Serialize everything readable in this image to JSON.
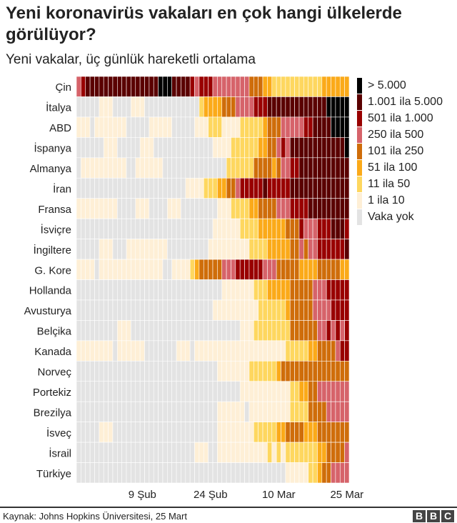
{
  "title": "Yeni koronavirüs vakaları en çok hangi ülkelerde görülüyor?",
  "subtitle": "Yeni vakalar, üç günlük hareketli ortalama",
  "source": "Kaynak: Johns Hopkins Üniversitesi, 25 Mart",
  "logo": [
    "B",
    "B",
    "C"
  ],
  "chart_data": {
    "type": "heatmap",
    "title": "Yeni koronavirüs vakaları en çok hangi ülkelerde görülüyor?",
    "subtitle": "Yeni vakalar, üç günlük hareketli ortalama",
    "x_days": 60,
    "x_ticks": [
      {
        "label": "9 Şub",
        "day": 14
      },
      {
        "label": "24 Şub",
        "day": 29
      },
      {
        "label": "10 Mar",
        "day": 44
      },
      {
        "label": "25 Mar",
        "day": 59
      }
    ],
    "legend": [
      {
        "level": 8,
        "label": "> 5.000",
        "color": "#000000"
      },
      {
        "level": 7,
        "label": "1.001 ila 5.000",
        "color": "#5a0000"
      },
      {
        "level": 6,
        "label": "501 ila 1.000",
        "color": "#990000"
      },
      {
        "level": 5,
        "label": "250 ila 500",
        "color": "#d6636a"
      },
      {
        "level": 4,
        "label": "101 ila 250",
        "color": "#cf6d0a"
      },
      {
        "level": 3,
        "label": "51 ila 100",
        "color": "#fbaa19"
      },
      {
        "level": 2,
        "label": "11 ila 50",
        "color": "#fed75f"
      },
      {
        "level": 1,
        "label": "1 ila 10",
        "color": "#feefd6"
      },
      {
        "level": 0,
        "label": "Vaka yok",
        "color": "#e3e3e3"
      }
    ],
    "rows": [
      {
        "country": "Çin",
        "runs": [
          [
            5,
            1
          ],
          [
            6,
            1
          ],
          [
            7,
            16
          ],
          [
            8,
            3
          ],
          [
            7,
            4
          ],
          [
            6,
            1
          ],
          [
            5,
            1
          ],
          [
            6,
            3
          ],
          [
            5,
            8
          ],
          [
            4,
            3
          ],
          [
            3,
            2
          ],
          [
            2,
            11
          ],
          [
            3,
            6
          ]
        ]
      },
      {
        "country": "İtalya",
        "runs": [
          [
            0,
            5
          ],
          [
            1,
            3
          ],
          [
            0,
            4
          ],
          [
            1,
            3
          ],
          [
            0,
            12
          ],
          [
            2,
            1
          ],
          [
            3,
            4
          ],
          [
            4,
            3
          ],
          [
            5,
            4
          ],
          [
            6,
            3
          ],
          [
            7,
            13
          ],
          [
            8,
            5
          ]
        ]
      },
      {
        "country": "ABD",
        "runs": [
          [
            1,
            3
          ],
          [
            0,
            1
          ],
          [
            1,
            7
          ],
          [
            0,
            5
          ],
          [
            1,
            5
          ],
          [
            0,
            5
          ],
          [
            1,
            3
          ],
          [
            2,
            3
          ],
          [
            1,
            4
          ],
          [
            2,
            5
          ],
          [
            3,
            1
          ],
          [
            4,
            3
          ],
          [
            5,
            5
          ],
          [
            6,
            2
          ],
          [
            7,
            4
          ],
          [
            8,
            4
          ]
        ]
      },
      {
        "country": "İspanya",
        "runs": [
          [
            0,
            6
          ],
          [
            1,
            3
          ],
          [
            0,
            5
          ],
          [
            1,
            3
          ],
          [
            0,
            13
          ],
          [
            1,
            4
          ],
          [
            2,
            6
          ],
          [
            3,
            2
          ],
          [
            4,
            2
          ],
          [
            5,
            1
          ],
          [
            6,
            1
          ],
          [
            5,
            1
          ],
          [
            7,
            12
          ],
          [
            8,
            1
          ]
        ]
      },
      {
        "country": "Almanya",
        "runs": [
          [
            0,
            1
          ],
          [
            1,
            10
          ],
          [
            0,
            2
          ],
          [
            1,
            6
          ],
          [
            0,
            14
          ],
          [
            2,
            6
          ],
          [
            4,
            4
          ],
          [
            3,
            1
          ],
          [
            4,
            1
          ],
          [
            5,
            2
          ],
          [
            6,
            2
          ],
          [
            7,
            11
          ]
        ]
      },
      {
        "country": "İran",
        "runs": [
          [
            0,
            24
          ],
          [
            1,
            4
          ],
          [
            2,
            3
          ],
          [
            3,
            2
          ],
          [
            4,
            2
          ],
          [
            5,
            1
          ],
          [
            6,
            5
          ],
          [
            7,
            1
          ],
          [
            6,
            5
          ],
          [
            7,
            13
          ]
        ]
      },
      {
        "country": "Fransa",
        "runs": [
          [
            1,
            9
          ],
          [
            0,
            4
          ],
          [
            1,
            3
          ],
          [
            0,
            4
          ],
          [
            1,
            3
          ],
          [
            0,
            8
          ],
          [
            1,
            3
          ],
          [
            2,
            4
          ],
          [
            3,
            2
          ],
          [
            4,
            4
          ],
          [
            5,
            3
          ],
          [
            6,
            4
          ],
          [
            7,
            9
          ]
        ]
      },
      {
        "country": "İsviçre",
        "runs": [
          [
            0,
            30
          ],
          [
            1,
            6
          ],
          [
            2,
            4
          ],
          [
            3,
            6
          ],
          [
            4,
            3
          ],
          [
            6,
            1
          ],
          [
            5,
            3
          ],
          [
            6,
            3
          ],
          [
            7,
            3
          ],
          [
            6,
            1
          ]
        ]
      },
      {
        "country": "İngiltere",
        "runs": [
          [
            0,
            5
          ],
          [
            1,
            3
          ],
          [
            0,
            3
          ],
          [
            1,
            9
          ],
          [
            0,
            9
          ],
          [
            1,
            9
          ],
          [
            2,
            4
          ],
          [
            3,
            5
          ],
          [
            4,
            2
          ],
          [
            5,
            1
          ],
          [
            4,
            1
          ],
          [
            5,
            2
          ],
          [
            6,
            6
          ],
          [
            7,
            1
          ]
        ]
      },
      {
        "country": "G. Kore",
        "runs": [
          [
            1,
            4
          ],
          [
            0,
            1
          ],
          [
            1,
            14
          ],
          [
            0,
            2
          ],
          [
            1,
            4
          ],
          [
            2,
            1
          ],
          [
            3,
            1
          ],
          [
            4,
            5
          ],
          [
            5,
            3
          ],
          [
            6,
            6
          ],
          [
            5,
            3
          ],
          [
            4,
            5
          ],
          [
            3,
            4
          ],
          [
            4,
            5
          ],
          [
            3,
            2
          ]
        ]
      },
      {
        "country": "Hollanda",
        "runs": [
          [
            0,
            32
          ],
          [
            1,
            7
          ],
          [
            2,
            3
          ],
          [
            3,
            5
          ],
          [
            4,
            5
          ],
          [
            5,
            3
          ],
          [
            6,
            5
          ]
        ]
      },
      {
        "country": "Avusturya",
        "runs": [
          [
            0,
            30
          ],
          [
            1,
            10
          ],
          [
            2,
            6
          ],
          [
            3,
            1
          ],
          [
            4,
            5
          ],
          [
            5,
            4
          ],
          [
            6,
            4
          ]
        ]
      },
      {
        "country": "Belçika",
        "runs": [
          [
            0,
            9
          ],
          [
            1,
            3
          ],
          [
            0,
            24
          ],
          [
            1,
            3
          ],
          [
            2,
            8
          ],
          [
            4,
            6
          ],
          [
            5,
            2
          ],
          [
            6,
            1
          ],
          [
            5,
            1
          ],
          [
            6,
            1
          ],
          [
            5,
            1
          ],
          [
            6,
            1
          ]
        ]
      },
      {
        "country": "Kanada",
        "runs": [
          [
            1,
            8
          ],
          [
            0,
            1
          ],
          [
            1,
            6
          ],
          [
            0,
            7
          ],
          [
            1,
            3
          ],
          [
            0,
            1
          ],
          [
            1,
            20
          ],
          [
            2,
            5
          ],
          [
            3,
            2
          ],
          [
            4,
            4
          ],
          [
            5,
            1
          ],
          [
            6,
            2
          ]
        ]
      },
      {
        "country": "Norveç",
        "runs": [
          [
            0,
            31
          ],
          [
            1,
            7
          ],
          [
            2,
            6
          ],
          [
            3,
            1
          ],
          [
            4,
            15
          ]
        ]
      },
      {
        "country": "Portekiz",
        "runs": [
          [
            0,
            36
          ],
          [
            1,
            11
          ],
          [
            2,
            2
          ],
          [
            3,
            2
          ],
          [
            4,
            2
          ],
          [
            5,
            7
          ]
        ]
      },
      {
        "country": "Brezilya",
        "runs": [
          [
            0,
            31
          ],
          [
            1,
            6
          ],
          [
            0,
            1
          ],
          [
            1,
            9
          ],
          [
            2,
            4
          ],
          [
            4,
            4
          ],
          [
            5,
            5
          ]
        ]
      },
      {
        "country": "İsveç",
        "runs": [
          [
            0,
            5
          ],
          [
            1,
            3
          ],
          [
            0,
            23
          ],
          [
            1,
            8
          ],
          [
            2,
            5
          ],
          [
            3,
            2
          ],
          [
            4,
            4
          ],
          [
            3,
            3
          ],
          [
            4,
            7
          ]
        ]
      },
      {
        "country": "İsrail",
        "runs": [
          [
            0,
            26
          ],
          [
            1,
            3
          ],
          [
            0,
            2
          ],
          [
            1,
            11
          ],
          [
            2,
            1
          ],
          [
            1,
            1
          ],
          [
            2,
            1
          ],
          [
            1,
            1
          ],
          [
            2,
            7
          ],
          [
            3,
            2
          ],
          [
            4,
            4
          ],
          [
            5,
            1
          ]
        ]
      },
      {
        "country": "Türkiye",
        "runs": [
          [
            0,
            46
          ],
          [
            1,
            5
          ],
          [
            2,
            2
          ],
          [
            3,
            1
          ],
          [
            4,
            2
          ],
          [
            5,
            4
          ]
        ]
      }
    ]
  }
}
